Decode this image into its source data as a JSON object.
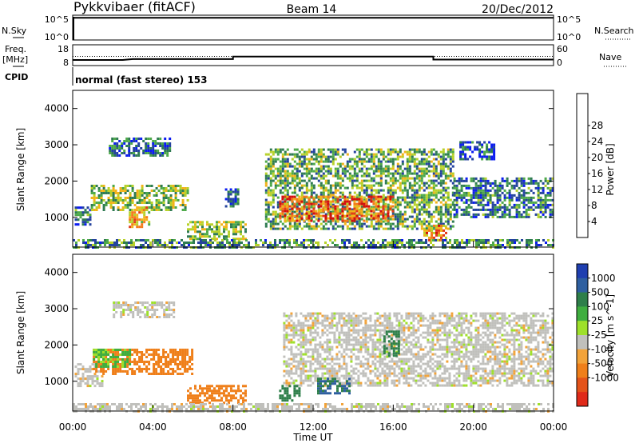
{
  "header": {
    "station": "Pykkvibaer (fitACF)",
    "beam": "Beam 14",
    "date": "20/Dec/2012"
  },
  "nsky_panel": {
    "label": "N.Sky",
    "left_tick_top": "10^5",
    "left_tick_bottom": "10^0",
    "right_tick_top": "10^5",
    "right_tick_bottom": "10^0",
    "right_label": "N.Search"
  },
  "freq_panel": {
    "label_line1": "Freq.",
    "label_line2": "[MHz]",
    "left_tick_top": "18",
    "left_tick_bottom": "8",
    "right_tick_top": "60",
    "right_tick_bottom": "0",
    "right_label": "Nave"
  },
  "cpid": {
    "label": "CPID",
    "text": "normal (fast stereo) 153"
  },
  "axes": {
    "ylabel": "Slant Range [km]",
    "xlabel": "Time UT",
    "y_ticks": [
      "1000",
      "2000",
      "3000",
      "4000"
    ],
    "x_ticks": [
      "00:00",
      "04:00",
      "08:00",
      "12:00",
      "16:00",
      "20:00",
      "00:00"
    ]
  },
  "power_colorbar": {
    "label": "Power [dB]",
    "ticks": [
      "4",
      "8",
      "12",
      "16",
      "20",
      "24",
      "28"
    ],
    "colors": [
      "#0b1cf0",
      "#24439e",
      "#2f7b52",
      "#4ea94a",
      "#b7d12a",
      "#f2b31a",
      "#f47a1a",
      "#e23a1a",
      "#d40e0e"
    ]
  },
  "velocity_colorbar": {
    "label": "Velocity [m s^-1]",
    "ticks": [
      "1000",
      "500",
      "100",
      "25",
      "-25",
      "-100",
      "-500",
      "-1000"
    ],
    "colors": [
      "#1f3fb0",
      "#2e5fa0",
      "#2e7f4a",
      "#3fae3f",
      "#9ee02a",
      "#c0c0bc",
      "#f2a33a",
      "#ef7f1a",
      "#e4531a",
      "#e02a1a"
    ]
  },
  "chart_data": [
    {
      "type": "line",
      "title": "N.Sky",
      "x_range_hours": [
        0,
        24
      ],
      "y_scale": "log",
      "ylim": [
        1,
        100000
      ],
      "series": [
        {
          "name": "N.Sky",
          "x": [
            0,
            24
          ],
          "y": [
            30000,
            30000
          ]
        }
      ]
    },
    {
      "type": "line",
      "title": "Freq.",
      "x_range_hours": [
        0,
        24
      ],
      "ylim": [
        8,
        18
      ],
      "series": [
        {
          "name": "Freq",
          "x": [
            0,
            2.5,
            3.0,
            8.0,
            8.0,
            18.0,
            18.0,
            24.0
          ],
          "y": [
            10.7,
            10.7,
            11.1,
            11.1,
            12.3,
            12.3,
            10.9,
            10.9
          ]
        },
        {
          "name": "Nave",
          "x": [
            0,
            24
          ],
          "y": [
            12.4,
            12.4
          ]
        }
      ]
    },
    {
      "type": "heatmap",
      "title": "Power [dB]",
      "x_range_hours": [
        0,
        24
      ],
      "ylim_km": [
        180,
        4500
      ],
      "regions": [
        {
          "t": [
            0.1,
            0.9
          ],
          "r": [
            800,
            1300
          ],
          "p": 8
        },
        {
          "t": [
            0.9,
            5.8
          ],
          "r": [
            1200,
            1900
          ],
          "p": 14
        },
        {
          "t": [
            2.8,
            3.8
          ],
          "r": [
            750,
            1300
          ],
          "p": 20
        },
        {
          "t": [
            1.8,
            4.9
          ],
          "r": [
            2700,
            3200
          ],
          "p": 7
        },
        {
          "t": [
            5.7,
            8.6
          ],
          "r": [
            400,
            900
          ],
          "p": 14
        },
        {
          "t": [
            7.6,
            8.2
          ],
          "r": [
            1300,
            1800
          ],
          "p": 7
        },
        {
          "t": [
            9.6,
            19.0
          ],
          "r": [
            700,
            2900
          ],
          "p": 12
        },
        {
          "t": [
            10.3,
            16.0
          ],
          "r": [
            900,
            1600
          ],
          "p": 24
        },
        {
          "t": [
            17.5,
            18.6
          ],
          "r": [
            400,
            800
          ],
          "p": 22
        },
        {
          "t": [
            19.0,
            24.0
          ],
          "r": [
            1000,
            2100
          ],
          "p": 8
        },
        {
          "t": [
            19.3,
            21.0
          ],
          "r": [
            2600,
            3100
          ],
          "p": 5
        },
        {
          "t": [
            0.0,
            24.0
          ],
          "r": [
            180,
            400
          ],
          "p": 10
        }
      ]
    },
    {
      "type": "heatmap",
      "title": "Velocity [m s^-1]",
      "x_range_hours": [
        0,
        24
      ],
      "ylim_km": [
        180,
        4500
      ],
      "regions": [
        {
          "t": [
            0.1,
            1.5
          ],
          "r": [
            900,
            1500
          ],
          "v": 0
        },
        {
          "t": [
            1.0,
            6.0
          ],
          "r": [
            1200,
            1900
          ],
          "v": -150
        },
        {
          "t": [
            1.0,
            2.8
          ],
          "r": [
            1400,
            1900
          ],
          "v": 60
        },
        {
          "t": [
            2.0,
            5.0
          ],
          "r": [
            2800,
            3200
          ],
          "v": 0
        },
        {
          "t": [
            5.7,
            8.6
          ],
          "r": [
            400,
            900
          ],
          "v": -150
        },
        {
          "t": [
            10.5,
            24.0
          ],
          "r": [
            900,
            2900
          ],
          "v": 0
        },
        {
          "t": [
            12.2,
            13.8
          ],
          "r": [
            700,
            1100
          ],
          "v": 300
        },
        {
          "t": [
            10.3,
            11.3
          ],
          "r": [
            500,
            900
          ],
          "v": 200
        },
        {
          "t": [
            15.5,
            16.3
          ],
          "r": [
            1700,
            2400
          ],
          "v": 200
        },
        {
          "t": [
            0.0,
            24.0
          ],
          "r": [
            180,
            400
          ],
          "v": 0
        }
      ]
    }
  ]
}
